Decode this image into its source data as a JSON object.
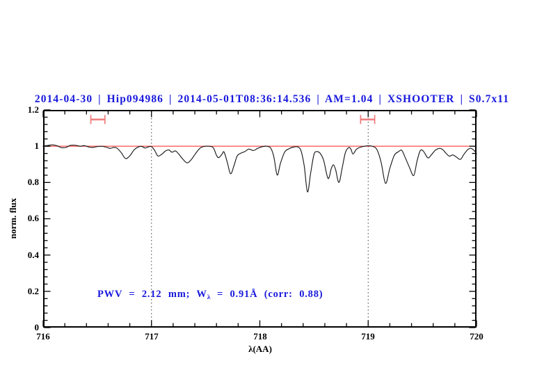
{
  "header": {
    "title": "2014-04-30 | Hip094986 | 2014-05-01T08:36:14.536 | AM=1.04 | XSHOOTER | S0.7x11",
    "color": "#1818dd"
  },
  "annotation": {
    "prefix": "PWV = 2.12 mm; W",
    "sub": "λ",
    "suffix": " = 0.91Å (corr: 0.88)",
    "color": "#1818dd"
  },
  "chart_data": {
    "type": "line",
    "title": "",
    "xlabel": "λ(AA)",
    "ylabel": "norm. flux",
    "xlim": [
      716,
      720
    ],
    "ylim": [
      0,
      1.2
    ],
    "x_tick_labels": [
      "716",
      "717",
      "718",
      "719",
      "720"
    ],
    "y_tick_labels": [
      "0",
      "0.2",
      "0.4",
      "0.6",
      "0.8",
      "1",
      "1.2"
    ],
    "x_major_step": 1,
    "x_minor_step": 0.2,
    "y_major_step": 0.2,
    "y_minor_step": 0.04,
    "grid": "off",
    "legend": "none",
    "frame_color": "#000000",
    "dotted_guides_x": [
      717,
      719
    ],
    "guide_color": "#3a3a3a",
    "continuum_level": 1.0,
    "continuum_color": "#ff3b3b",
    "marker_color": "#f08080",
    "markers": [
      {
        "x_start": 716.44,
        "x_end": 716.57,
        "y": 1.147
      },
      {
        "x_start": 718.93,
        "x_end": 719.06,
        "y": 1.147
      }
    ],
    "series": [
      {
        "name": "observed-spectrum",
        "color": "#1a1a1a",
        "points": [
          [
            716.0,
            1.0
          ],
          [
            716.05,
            1.005
          ],
          [
            716.09,
            1.007
          ],
          [
            716.13,
            1.002
          ],
          [
            716.17,
            0.992
          ],
          [
            716.21,
            0.993
          ],
          [
            716.25,
            1.004
          ],
          [
            716.3,
            1.005
          ],
          [
            716.34,
            1.0
          ],
          [
            716.38,
            1.003
          ],
          [
            716.42,
            0.996
          ],
          [
            716.46,
            0.993
          ],
          [
            716.5,
            0.998
          ],
          [
            716.55,
            0.999
          ],
          [
            716.59,
            0.993
          ],
          [
            716.62,
            0.988
          ],
          [
            716.65,
            0.993
          ],
          [
            716.68,
            0.99
          ],
          [
            716.72,
            0.965
          ],
          [
            716.76,
            0.932
          ],
          [
            716.8,
            0.947
          ],
          [
            716.84,
            0.98
          ],
          [
            716.88,
            0.996
          ],
          [
            716.91,
            0.999
          ],
          [
            716.94,
            0.99
          ],
          [
            716.97,
            0.996
          ],
          [
            717.0,
            0.998
          ],
          [
            717.03,
            0.976
          ],
          [
            717.06,
            0.946
          ],
          [
            717.1,
            0.958
          ],
          [
            717.13,
            0.974
          ],
          [
            717.16,
            0.979
          ],
          [
            717.19,
            0.967
          ],
          [
            717.22,
            0.974
          ],
          [
            717.25,
            0.958
          ],
          [
            717.29,
            0.928
          ],
          [
            717.33,
            0.908
          ],
          [
            717.37,
            0.928
          ],
          [
            717.41,
            0.962
          ],
          [
            717.45,
            0.99
          ],
          [
            717.49,
            0.999
          ],
          [
            717.53,
            1.0
          ],
          [
            717.57,
            0.992
          ],
          [
            717.6,
            0.95
          ],
          [
            717.62,
            0.937
          ],
          [
            717.65,
            0.955
          ],
          [
            717.67,
            0.968
          ],
          [
            717.7,
            0.91
          ],
          [
            717.73,
            0.848
          ],
          [
            717.76,
            0.89
          ],
          [
            717.79,
            0.945
          ],
          [
            717.82,
            0.96
          ],
          [
            717.86,
            0.97
          ],
          [
            717.9,
            0.984
          ],
          [
            717.94,
            0.976
          ],
          [
            717.98,
            0.988
          ],
          [
            718.02,
            0.997
          ],
          [
            718.06,
            1.0
          ],
          [
            718.1,
            0.99
          ],
          [
            718.13,
            0.94
          ],
          [
            718.16,
            0.841
          ],
          [
            718.19,
            0.905
          ],
          [
            718.23,
            0.968
          ],
          [
            718.27,
            0.986
          ],
          [
            718.31,
            0.995
          ],
          [
            718.35,
            0.996
          ],
          [
            718.38,
            0.975
          ],
          [
            718.41,
            0.89
          ],
          [
            718.44,
            0.748
          ],
          [
            718.47,
            0.855
          ],
          [
            718.5,
            0.955
          ],
          [
            718.53,
            0.97
          ],
          [
            718.56,
            0.958
          ],
          [
            718.59,
            0.92
          ],
          [
            718.63,
            0.822
          ],
          [
            718.66,
            0.878
          ],
          [
            718.68,
            0.897
          ],
          [
            718.7,
            0.87
          ],
          [
            718.73,
            0.8
          ],
          [
            718.76,
            0.88
          ],
          [
            718.79,
            0.965
          ],
          [
            718.82,
            0.992
          ],
          [
            718.84,
            0.985
          ],
          [
            718.86,
            0.957
          ],
          [
            718.89,
            0.982
          ],
          [
            718.92,
            0.993
          ],
          [
            718.96,
            0.999
          ],
          [
            719.0,
            1.002
          ],
          [
            719.04,
            0.999
          ],
          [
            719.08,
            0.982
          ],
          [
            719.12,
            0.91
          ],
          [
            719.16,
            0.795
          ],
          [
            719.2,
            0.878
          ],
          [
            719.24,
            0.948
          ],
          [
            719.28,
            0.97
          ],
          [
            719.31,
            0.977
          ],
          [
            719.34,
            0.94
          ],
          [
            719.38,
            0.885
          ],
          [
            719.42,
            0.838
          ],
          [
            719.45,
            0.915
          ],
          [
            719.48,
            0.975
          ],
          [
            719.51,
            0.972
          ],
          [
            719.55,
            0.936
          ],
          [
            719.58,
            0.95
          ],
          [
            719.62,
            0.978
          ],
          [
            719.66,
            0.988
          ],
          [
            719.69,
            0.98
          ],
          [
            719.72,
            0.96
          ],
          [
            719.75,
            0.945
          ],
          [
            719.78,
            0.952
          ],
          [
            719.81,
            0.942
          ],
          [
            719.85,
            0.927
          ],
          [
            719.88,
            0.952
          ],
          [
            719.92,
            0.982
          ],
          [
            719.95,
            0.988
          ],
          [
            719.98,
            0.975
          ],
          [
            720.0,
            0.958
          ]
        ]
      }
    ]
  }
}
